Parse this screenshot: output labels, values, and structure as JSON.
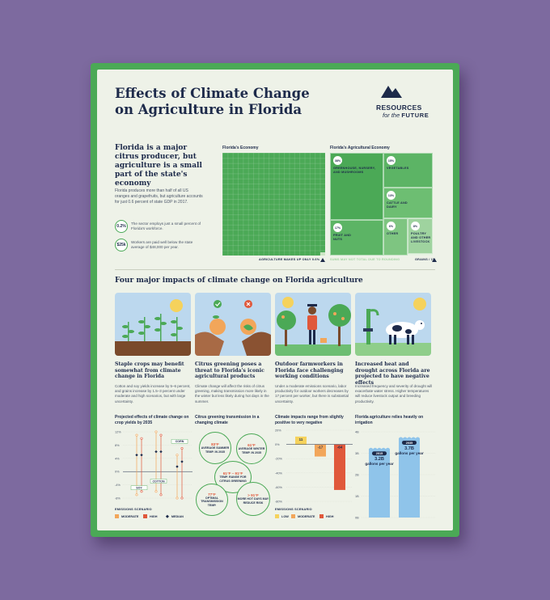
{
  "title": "Effects of Climate Change on Agriculture in Florida",
  "logo": {
    "line1": "RESOURCES",
    "line2_for": "for the",
    "line2_future": "FUTURE"
  },
  "section1": {
    "heading": "Florida is a major citrus producer, but agriculture is a small part of the state's economy",
    "body": "Florida produces more than half of all US oranges and grapefruits, but agriculture accounts for just 0.6 percent of state GDP in 2017.",
    "stats": [
      {
        "badge": "0.2%",
        "text": "The sector employs just a small percent of Florida's workforce."
      },
      {
        "badge": "$25k",
        "text": "Workers are paid well below the state average of $48,000 per year."
      }
    ],
    "economy_label": "Florida's Economy",
    "ag_label": "Florida's Agricultural Economy",
    "economy_note": "AGRICULTURE MAKES UP ONLY 0.6%",
    "rounding_note": "SUMS MAY NOT TOTAL DUE TO ROUNDING",
    "grains_note": "GRAINS / 1%",
    "ag_sectors": [
      {
        "pct": "38%",
        "label": "GREENHOUSE, NURSERY, AND MUSHROOMS"
      },
      {
        "pct": "15%",
        "label": "VEGETABLES"
      },
      {
        "pct": "13%",
        "label": "CATTLE AND DAIRY"
      },
      {
        "pct": "17%",
        "label": "FRUIT AND NUTS"
      },
      {
        "pct": "6%",
        "label": "OTHER"
      },
      {
        "pct": "8%",
        "label": "POULTRY AND OTHER LIVESTOCK"
      }
    ]
  },
  "section2": {
    "heading": "Four major impacts of climate change on Florida agriculture",
    "columns": [
      {
        "heading": "Staple crops may benefit somewhat from climate change in Florida",
        "body": "Cotton and soy yields increase by 5–6 percent, and grains increase by 1.5–3 percent under moderate and high scenarios, but with large uncertainty.",
        "sub": "Projected effects of climate change on crop yields by 2035"
      },
      {
        "heading": "Citrus greening poses a threat to Florida's iconic agricultural products",
        "body": "Climate change will affect the risks of citrus greening, making transmission more likely in the winter but less likely during hot days in the summer.",
        "sub": "Citrus greening transmission in a changing climate"
      },
      {
        "heading": "Outdoor farmworkers in Florida face challenging working conditions",
        "body": "Under a moderate emissions scenario, labor productivity for outdoor workers decreases by 17 percent per worker, but there is substantial uncertainty.",
        "sub": "Climate impacts range from slightly positive to very negative"
      },
      {
        "heading": "Increased heat and drought across Florida are projected to have negative effects",
        "body": "Increased frequency and severity of drought will exacerbate water stress. Higher temperatures will reduce livestock output and breeding productivity.",
        "sub": "Florida agriculture relies heavily on irrigation"
      }
    ]
  },
  "crop_legend": {
    "title": "EMISSIONS SCENARIO",
    "moderate": "MODERATE",
    "high": "HIGH",
    "median": "MEDIAN"
  },
  "labor_legend": {
    "title": "EMISSIONS SCENARIO",
    "low": "LOW",
    "moderate": "MODERATE",
    "high": "HIGH"
  },
  "citrus_bubbles": [
    {
      "value": "83°F",
      "label": "AVERAGE SUMMER TEMP. IN 2035"
    },
    {
      "value": "61°F",
      "label": "AVERAGE WINTER TEMP. IN 2035"
    },
    {
      "value": "61°F – 91°F",
      "label": "TEMP. RANGE FOR CITRUS GREENING"
    },
    {
      "value": "77°F",
      "label": "OPTIMAL TRANSMISSION TEMP."
    },
    {
      "value": "> 91°F",
      "label": "MORE HOT DAYS MAY REDUCE RISK"
    }
  ],
  "chart_data": [
    {
      "type": "scatter",
      "title": "Projected effects of climate change on crop yields by 2035",
      "y_ticks": [
        "12%",
        "8%",
        "4%",
        "0%",
        "-4%",
        "-8%"
      ],
      "ylim": [
        -8,
        12
      ],
      "categories": [
        "SOY",
        "COTTON",
        "CORN"
      ],
      "series": [
        {
          "name": "MODERATE",
          "color": "#f2a65a",
          "ranges": [
            [
              -7,
              11
            ],
            [
              -6,
              12
            ],
            [
              -8,
              5
            ]
          ],
          "medians": [
            5,
            6,
            1.5
          ]
        },
        {
          "name": "HIGH",
          "color": "#e0583b",
          "ranges": [
            [
              -6,
              10
            ],
            [
              -7,
              11
            ],
            [
              -8,
              7
            ]
          ],
          "medians": [
            5,
            6,
            3
          ]
        }
      ]
    },
    {
      "type": "bar",
      "title": "Climate impacts range from slightly positive to very negative",
      "y_ticks": [
        "20%",
        "0%",
        "-20%",
        "-40%",
        "-60%",
        "-80%"
      ],
      "ylim": [
        -80,
        20
      ],
      "categories": [
        "LOW",
        "MODERATE",
        "HIGH"
      ],
      "values": [
        11,
        -17,
        -64
      ],
      "value_labels": [
        "11",
        "-17",
        "-64"
      ],
      "colors": [
        "#f5d25c",
        "#f2a65a",
        "#e0583b"
      ]
    },
    {
      "type": "bar",
      "title": "Florida agriculture relies heavily on irrigation",
      "y_ticks": [
        "4B",
        "3B",
        "2B",
        "1B",
        "0B"
      ],
      "ylim": [
        0,
        4
      ],
      "categories": [
        "2015",
        "2035"
      ],
      "values": [
        3.2,
        3.7
      ],
      "value_labels": [
        "3.2B gallons per year",
        "3.7B gallons per year"
      ],
      "value_main": [
        "3.2B",
        "3.7B"
      ],
      "value_unit": [
        "gallons per year",
        "gallons per year"
      ]
    }
  ]
}
